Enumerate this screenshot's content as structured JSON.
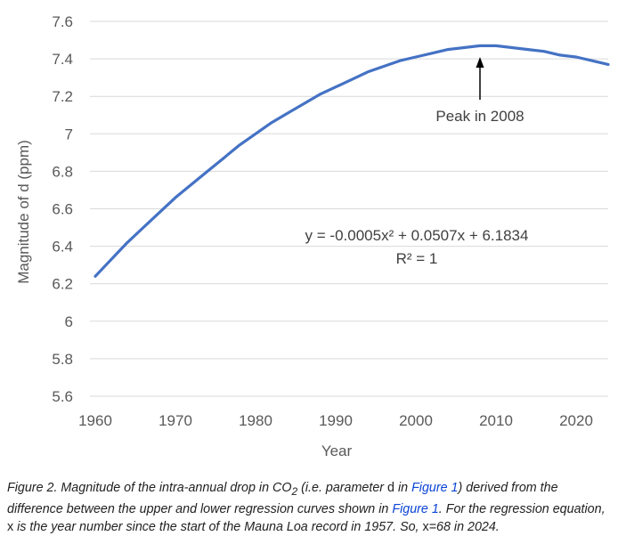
{
  "chart_data": {
    "type": "line",
    "xlabel": "Year",
    "ylabel": "Magnitude of d (ppm)",
    "xlim": [
      1960,
      2024
    ],
    "ylim": [
      5.6,
      7.6
    ],
    "x_ticks": [
      "1960",
      "1970",
      "1980",
      "1990",
      "2000",
      "2010",
      "2020"
    ],
    "y_ticks": [
      "7.6",
      "7.4",
      "7.2",
      "7",
      "6.8",
      "6.6",
      "6.4",
      "6.2",
      "6",
      "5.8",
      "5.6"
    ],
    "grid": "horizontal",
    "series": [
      {
        "color": "#4472c4",
        "x": [
          1960,
          1962,
          1964,
          1966,
          1968,
          1970,
          1972,
          1974,
          1976,
          1978,
          1980,
          1982,
          1984,
          1986,
          1988,
          1990,
          1992,
          1994,
          1996,
          1998,
          2000,
          2002,
          2004,
          2006,
          2008,
          2010,
          2012,
          2014,
          2016,
          2018,
          2020,
          2022,
          2024
        ],
        "y": [
          6.24,
          6.33,
          6.42,
          6.5,
          6.58,
          6.66,
          6.73,
          6.8,
          6.87,
          6.94,
          7.0,
          7.06,
          7.11,
          7.16,
          7.21,
          7.25,
          7.29,
          7.33,
          7.36,
          7.39,
          7.41,
          7.43,
          7.45,
          7.46,
          7.47,
          7.47,
          7.46,
          7.45,
          7.44,
          7.42,
          7.41,
          7.39,
          7.37
        ]
      }
    ],
    "annotations": {
      "peak_label": "Peak in 2008",
      "peak_x": 2008,
      "equation": "y = -0.0005x² + 0.0507x + 6.1834",
      "r_squared": "R² = 1"
    }
  },
  "caption": {
    "p1": "Figure 2. Magnitude of the intra-annual drop in CO",
    "sub": "2",
    "p2": " (i.e. parameter ",
    "var_d": "d",
    "p3": " in ",
    "link1": "Figure 1",
    "p4": ") derived from the difference between the upper and lower regression curves shown in ",
    "link2": "Figure 1",
    "p5": ". For the regression equation, ",
    "var_x": "x",
    "p6": " is the year number since the start of the Mauna Loa record in 1957. So, ",
    "var_x2": "x",
    "p7": "=68 in 2024."
  }
}
